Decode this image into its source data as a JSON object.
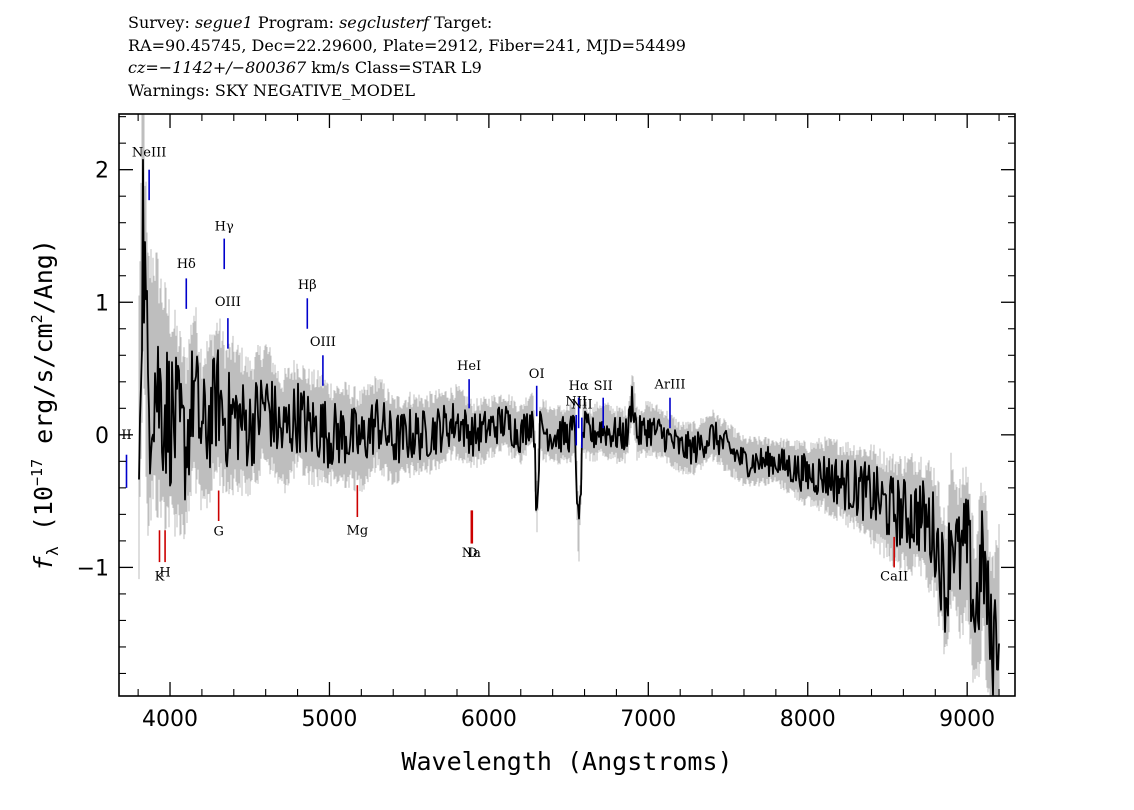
{
  "header": {
    "survey_label": "Survey:",
    "survey": "segue1",
    "program_label": "Program:",
    "program": "segclusterf",
    "target_label": "Target:",
    "line2": "RA=90.45745, Dec=22.29600, Plate=2912, Fiber=241, MJD=54499",
    "cz_label": "cz=",
    "cz_value": "−1142+/−800367",
    "cz_unit_class": " km/s  Class=STAR  L9",
    "warnings": "Warnings: SKY NEGATIVE_MODEL"
  },
  "chart_data": {
    "type": "line",
    "title": "",
    "xlabel": "Wavelength (Angstroms)",
    "ylabel_prefix": "f",
    "ylabel_sub": "λ",
    "ylabel_paren_open": " (10",
    "ylabel_exp": "−17",
    "ylabel_rest": " erg/s/cm",
    "ylabel_sq": "2",
    "ylabel_end": "/Ang)",
    "xlim": [
      3680,
      9300
    ],
    "ylim": [
      -1.97,
      2.42
    ],
    "grid": false,
    "x_ticks": [
      4000,
      5000,
      6000,
      7000,
      8000,
      9000
    ],
    "x_tick_labels": [
      "4000",
      "5000",
      "6000",
      "7000",
      "8000",
      "9000"
    ],
    "y_ticks": [
      -1,
      0,
      1,
      2
    ],
    "y_tick_labels": [
      "−1",
      "0",
      "1",
      "2"
    ],
    "colors": {
      "flux": "#000000",
      "error_band": "#bebebe",
      "emission": "#0000cc",
      "absorption": "#cc0000"
    },
    "series": [
      {
        "role": "flux",
        "color": "#000000",
        "x": [
          3800,
          3830,
          3860,
          3900,
          3950,
          4000,
          4050,
          4100,
          4150,
          4200,
          4250,
          4300,
          4350,
          4400,
          4500,
          4600,
          4700,
          4800,
          4880,
          4950,
          5000,
          5100,
          5200,
          5300,
          5400,
          5500,
          5600,
          5700,
          5800,
          5900,
          6000,
          6100,
          6200,
          6280,
          6300,
          6320,
          6400,
          6500,
          6540,
          6563,
          6590,
          6650,
          6700,
          6800,
          6870,
          6900,
          6930,
          7000,
          7100,
          7200,
          7300,
          7400,
          7500,
          7600,
          7700,
          7800,
          7900,
          8000,
          8100,
          8200,
          8300,
          8400,
          8500,
          8600,
          8700,
          8800,
          8870,
          8900,
          8950,
          9000,
          9050,
          9100,
          9150,
          9200
        ],
        "y": [
          -0.4,
          1.7,
          0.3,
          0.45,
          0.25,
          0.15,
          0.05,
          -0.1,
          0.35,
          0.0,
          0.12,
          0.3,
          0.1,
          0.15,
          0.05,
          0.25,
          0.0,
          0.15,
          0.05,
          0.05,
          0.0,
          0.0,
          -0.05,
          0.1,
          -0.05,
          0.0,
          0.0,
          0.05,
          0.1,
          0.0,
          0.05,
          0.1,
          0.0,
          0.15,
          -0.6,
          0.05,
          0.0,
          0.0,
          0.05,
          -0.8,
          0.05,
          0.0,
          0.05,
          0.0,
          0.0,
          0.3,
          0.0,
          0.05,
          0.0,
          -0.1,
          -0.1,
          0.0,
          -0.1,
          -0.2,
          -0.2,
          -0.2,
          -0.25,
          -0.3,
          -0.3,
          -0.35,
          -0.4,
          -0.45,
          -0.55,
          -0.6,
          -0.6,
          -0.75,
          -1.2,
          -0.7,
          -0.95,
          -0.8,
          -1.4,
          -0.9,
          -1.6,
          -1.4
        ]
      }
    ],
    "error_band_halfwidth": [
      {
        "x": 3800,
        "value": 1.0
      },
      {
        "x": 4100,
        "value": 0.6
      },
      {
        "x": 4600,
        "value": 0.4
      },
      {
        "x": 6000,
        "value": 0.2
      },
      {
        "x": 7800,
        "value": 0.15
      },
      {
        "x": 8700,
        "value": 0.4
      },
      {
        "x": 9200,
        "value": 0.6
      }
    ],
    "emission_lines": [
      {
        "label": "NeIII",
        "wavelength": 3869,
        "label_y": 2.1,
        "y_top": 2.0,
        "y_bottom": 1.77
      },
      {
        "label": "Hγ",
        "wavelength": 4340,
        "label_y": 1.54,
        "y_top": 1.48,
        "y_bottom": 1.25
      },
      {
        "label": "Hδ",
        "wavelength": 4102,
        "label_y": 1.26,
        "y_top": 1.18,
        "y_bottom": 0.95
      },
      {
        "label": "OIII",
        "wavelength": 4363,
        "label_y": 0.97,
        "y_top": 0.88,
        "y_bottom": 0.65
      },
      {
        "label": "Hβ",
        "wavelength": 4861,
        "label_y": 1.1,
        "y_top": 1.03,
        "y_bottom": 0.8
      },
      {
        "label": "OIII",
        "wavelength": 4959,
        "label_y": 0.67,
        "y_top": 0.6,
        "y_bottom": 0.37
      },
      {
        "label": "HeI",
        "wavelength": 5876,
        "label_y": 0.49,
        "y_top": 0.42,
        "y_bottom": 0.2
      },
      {
        "label": "OI",
        "wavelength": 6300,
        "label_y": 0.43,
        "y_top": 0.37,
        "y_bottom": 0.14
      },
      {
        "label": "NII",
        "wavelength": 6548,
        "label_y": 0.22,
        "y_top": 0.15,
        "y_bottom": -0.08
      },
      {
        "label": "Hα",
        "wavelength": 6563,
        "label_y": 0.34,
        "y_top": 0.28,
        "y_bottom": 0.05
      },
      {
        "label": "SII",
        "wavelength": 6717,
        "label_y": 0.34,
        "y_top": 0.28,
        "y_bottom": 0.05
      },
      {
        "label": "NII",
        "wavelength": 6583,
        "label_y": 0.2,
        "y_top": 0.13,
        "y_bottom": -0.1
      },
      {
        "label": "ArIII",
        "wavelength": 7136,
        "label_y": 0.35,
        "y_top": 0.28,
        "y_bottom": 0.05
      },
      {
        "label": "II",
        "wavelength": 3727,
        "label_y": -0.03,
        "y_top": -0.15,
        "y_bottom": -0.4
      }
    ],
    "absorption_lines": [
      {
        "label": "K",
        "wavelength": 3934,
        "label_y": -1.1,
        "y_top": -0.72,
        "y_bottom": -0.96
      },
      {
        "label": "H",
        "wavelength": 3969,
        "label_y": -1.07,
        "y_top": -0.72,
        "y_bottom": -0.96
      },
      {
        "label": "G",
        "wavelength": 4305,
        "label_y": -0.76,
        "y_top": -0.42,
        "y_bottom": -0.65
      },
      {
        "label": "Mg",
        "wavelength": 5175,
        "label_y": -0.75,
        "y_top": -0.38,
        "y_bottom": -0.62
      },
      {
        "label": "Na",
        "wavelength": 5890,
        "label_y": -0.92,
        "y_top": -0.57,
        "y_bottom": -0.82
      },
      {
        "label": "D",
        "wavelength": 5896,
        "label_y": -0.92,
        "y_top": -0.57,
        "y_bottom": -0.82
      },
      {
        "label": "CaII",
        "wavelength": 8542,
        "label_y": -1.1,
        "y_top": -0.77,
        "y_bottom": -1.0
      }
    ]
  }
}
